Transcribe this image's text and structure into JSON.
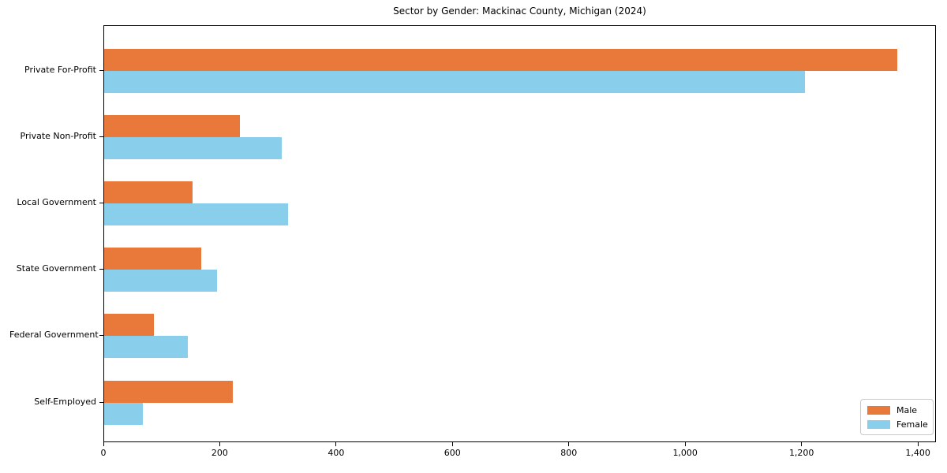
{
  "chart_data": {
    "type": "bar",
    "orientation": "horizontal",
    "title": "Sector by Gender: Mackinac County, Michigan (2024)",
    "categories": [
      "Private For-Profit",
      "Private Non-Profit",
      "Local Government",
      "State Government",
      "Federal Government",
      "Self-Employed"
    ],
    "series": [
      {
        "name": "Male",
        "color": "#e8793a",
        "values": [
          1363,
          233,
          152,
          167,
          85,
          221
        ]
      },
      {
        "name": "Female",
        "color": "#89ceea",
        "values": [
          1205,
          305,
          316,
          194,
          144,
          66
        ]
      }
    ],
    "xlabel": "",
    "ylabel": "",
    "xlim": [
      0,
      1431
    ],
    "xticks": [
      0,
      200,
      400,
      600,
      800,
      1000,
      1200,
      1400
    ],
    "xtick_labels": [
      "0",
      "200",
      "400",
      "600",
      "800",
      "1,000",
      "1,200",
      "1,400"
    ],
    "grid": false,
    "legend": {
      "position": "lower right",
      "entries": [
        "Male",
        "Female"
      ]
    }
  }
}
